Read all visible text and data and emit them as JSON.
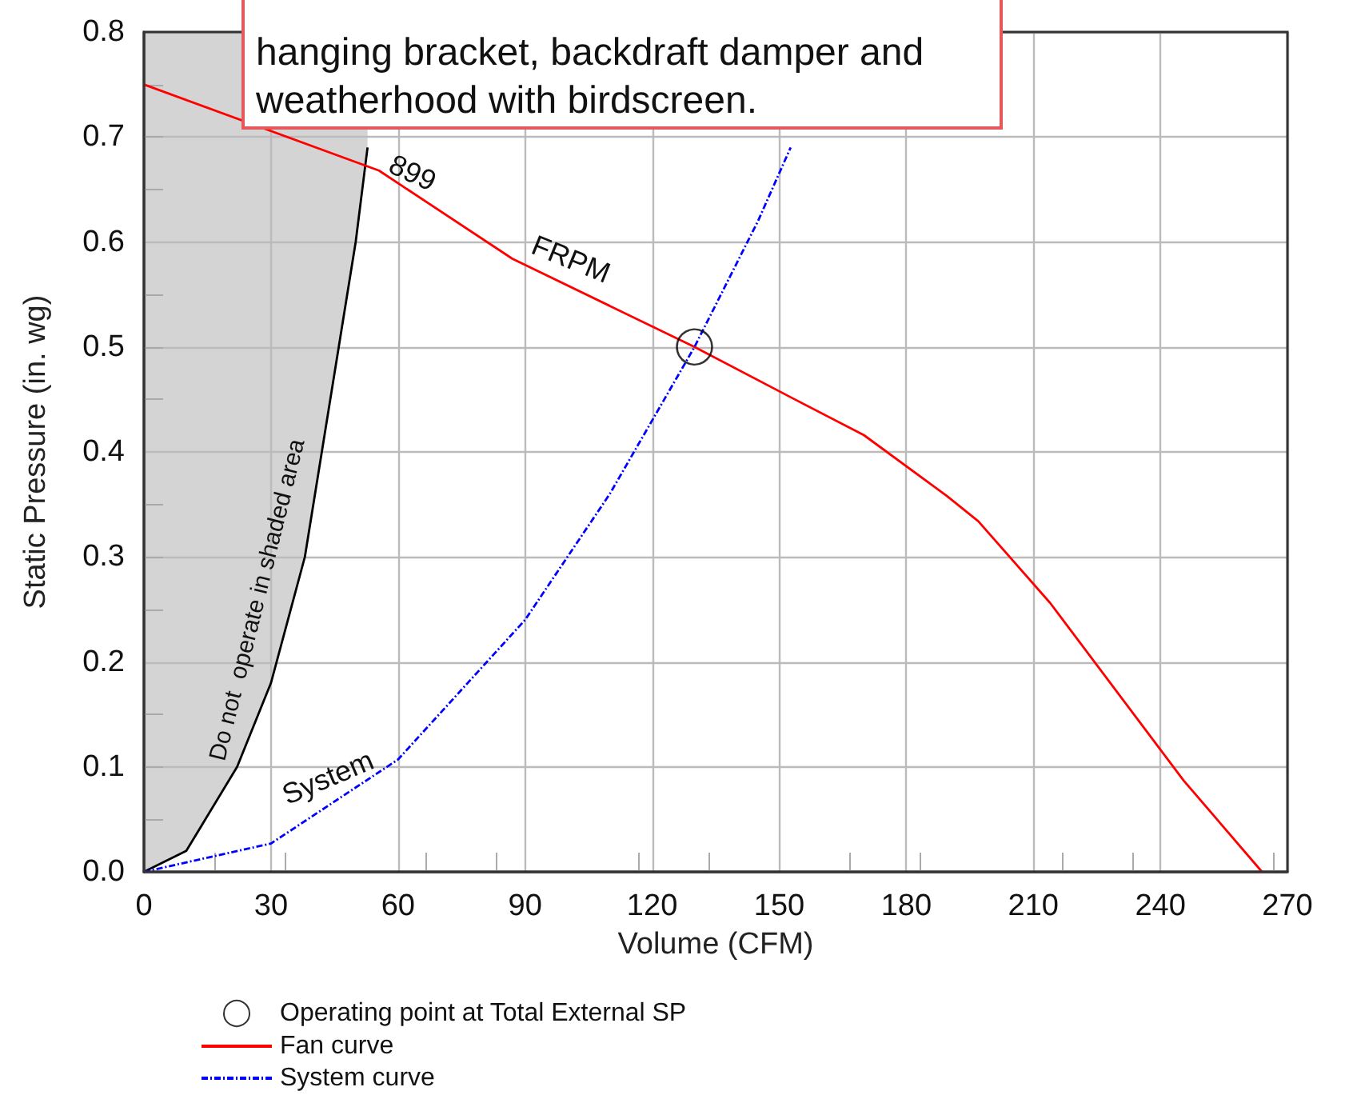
{
  "chart_data": {
    "type": "line",
    "xlabel": "Volume (CFM)",
    "ylabel": "Static Pressure (in. wg)",
    "xlim": [
      0,
      270
    ],
    "xticks": [
      0,
      30,
      60,
      90,
      120,
      150,
      180,
      210,
      240,
      270
    ],
    "ylim": [
      0,
      0.8
    ],
    "yticks": [
      {
        "value": 0,
        "label": "0.0"
      },
      0.1,
      0.2,
      0.3,
      0.4,
      0.5,
      0.6,
      0.7,
      0.8
    ],
    "grid": true,
    "legend": "bottom left",
    "series": [
      {
        "color": "#000000",
        "marker": "none",
        "line_style": "solid",
        "x": [
          0,
          10,
          22,
          30,
          38,
          46,
          50,
          52.8
        ],
        "values": [
          0,
          0.02,
          0.1,
          0.18,
          0.3,
          0.5,
          0.6,
          0.69
        ]
      },
      {
        "name": "Operating point at Total External SP",
        "type": "scatter",
        "color": "#000000",
        "marker": "circle",
        "x": [
          130
        ],
        "values": [
          0.5
        ]
      },
      {
        "name": "Fan curve",
        "color": "#ff0000",
        "marker": "none",
        "line_style": "solid",
        "x": [
          0,
          55.5,
          87,
          130,
          153.7,
          170,
          189.6,
          197,
          214,
          245.5,
          264
        ],
        "values": [
          0.75,
          0.668,
          0.584,
          0.5,
          0.45,
          0.416,
          0.358,
          0.334,
          0.256,
          0.087,
          0
        ]
      },
      {
        "name": "System curve",
        "color": "#0000ff",
        "marker": "none",
        "line_style": "dashed",
        "x": [
          0,
          30,
          60,
          90,
          110,
          130,
          145,
          152.7
        ],
        "values": [
          0,
          0.027,
          0.107,
          0.24,
          0.36,
          0.5,
          0.62,
          0.69
        ]
      }
    ],
    "annotations": [
      "899",
      "FRPM",
      "System",
      "Do not  operate in shaded area",
      "hanging bracket, backdraft damper and weatherhood with birdscreen."
    ]
  }
}
